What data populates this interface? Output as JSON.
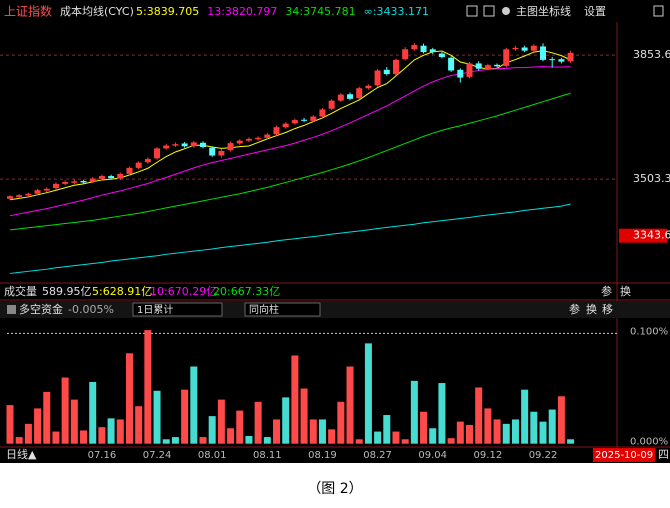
{
  "chart_data": {
    "type": "candlestick",
    "title": "上证指数",
    "indicator": "成本均线(CYC)",
    "toolbar": [
      "主图",
      "坐标线",
      "设置"
    ],
    "categories": [
      null,
      null,
      null,
      null,
      null,
      null,
      null,
      null,
      null,
      null,
      "07.16",
      null,
      null,
      null,
      null,
      null,
      "07.24",
      null,
      null,
      null,
      null,
      null,
      "08.01",
      null,
      null,
      null,
      null,
      null,
      "08.11",
      null,
      null,
      null,
      null,
      null,
      "08.19",
      null,
      null,
      null,
      null,
      null,
      "08.27",
      null,
      null,
      null,
      null,
      null,
      "09.04",
      null,
      null,
      null,
      null,
      null,
      "09.12",
      null,
      null,
      null,
      null,
      null,
      "09.22",
      null,
      null,
      null
    ],
    "open": [
      3448,
      3453,
      3457,
      3462,
      3471,
      3478,
      3490,
      3493,
      3498,
      3496,
      3504,
      3512,
      3505,
      3518,
      3535,
      3551,
      3562,
      3590,
      3598,
      3604,
      3596,
      3606,
      3592,
      3570,
      3585,
      3604,
      3612,
      3616,
      3620,
      3630,
      3650,
      3661,
      3671,
      3668,
      3680,
      3702,
      3725,
      3743,
      3732,
      3760,
      3768,
      3812,
      3800,
      3842,
      3870,
      3880,
      3870,
      3858,
      3846,
      3812,
      3792,
      3830,
      3814,
      3826,
      3823,
      3870,
      3875,
      3866,
      3878,
      3842,
      3842,
      3836
    ],
    "high": [
      3458,
      3461,
      3465,
      3476,
      3480,
      3494,
      3500,
      3502,
      3501,
      3509,
      3516,
      3516,
      3522,
      3539,
      3554,
      3565,
      3594,
      3603,
      3607,
      3608,
      3611,
      3610,
      3596,
      3588,
      3609,
      3616,
      3621,
      3624,
      3633,
      3654,
      3664,
      3674,
      3676,
      3684,
      3704,
      3729,
      3746,
      3748,
      3764,
      3771,
      3814,
      3820,
      3844,
      3876,
      3888,
      3886,
      3874,
      3862,
      3850,
      3816,
      3834,
      3836,
      3829,
      3830,
      3874,
      3880,
      3880,
      3884,
      3887,
      3848,
      3846,
      3866
    ],
    "low": [
      3444,
      3449,
      3453,
      3458,
      3467,
      3474,
      3486,
      3489,
      3490,
      3492,
      3500,
      3502,
      3501,
      3514,
      3531,
      3547,
      3558,
      3586,
      3594,
      3592,
      3592,
      3590,
      3566,
      3564,
      3581,
      3600,
      3608,
      3612,
      3616,
      3626,
      3646,
      3657,
      3664,
      3664,
      3676,
      3698,
      3721,
      3726,
      3728,
      3756,
      3764,
      3796,
      3796,
      3838,
      3866,
      3858,
      3856,
      3844,
      3806,
      3776,
      3788,
      3810,
      3810,
      3818,
      3819,
      3866,
      3862,
      3862,
      3836,
      3818,
      3830,
      3832
    ],
    "close": [
      3455,
      3458,
      3462,
      3472,
      3476,
      3490,
      3495,
      3497,
      3494,
      3505,
      3512,
      3506,
      3518,
      3535,
      3550,
      3560,
      3590,
      3598,
      3602,
      3596,
      3607,
      3594,
      3570,
      3583,
      3605,
      3612,
      3617,
      3620,
      3629,
      3650,
      3660,
      3670,
      3668,
      3680,
      3700,
      3725,
      3742,
      3730,
      3760,
      3767,
      3810,
      3800,
      3840,
      3870,
      3882,
      3862,
      3862,
      3848,
      3810,
      3790,
      3830,
      3815,
      3825,
      3822,
      3870,
      3874,
      3866,
      3880,
      3840,
      3840,
      3835,
      3860
    ],
    "up_color": "#ff3c3c",
    "down_color": "#54fcfc",
    "series": [
      {
        "name": "5:3839.705",
        "color": "#ffff00",
        "values": [
          3445,
          3449,
          3453,
          3459,
          3465,
          3472,
          3479,
          3486,
          3490,
          3496,
          3501,
          3503,
          3507,
          3515,
          3524,
          3534,
          3551,
          3567,
          3580,
          3589,
          3599,
          3599,
          3594,
          3590,
          3592,
          3595,
          3597,
          3607,
          3617,
          3626,
          3635,
          3646,
          3655,
          3666,
          3676,
          3689,
          3703,
          3715,
          3727,
          3745,
          3762,
          3773,
          3795,
          3817,
          3840,
          3853,
          3863,
          3865,
          3853,
          3834,
          3828,
          3819,
          3814,
          3816,
          3832,
          3841,
          3851,
          3862,
          3866,
          3860,
          3852,
          3839.705
        ]
      },
      {
        "name": "13:3820.797",
        "color": "#ff00ff",
        "values": [
          3400,
          3405,
          3410,
          3415,
          3420,
          3426,
          3432,
          3438,
          3444,
          3451,
          3458,
          3464,
          3470,
          3477,
          3484,
          3491,
          3500,
          3508,
          3517,
          3526,
          3535,
          3543,
          3550,
          3556,
          3562,
          3568,
          3574,
          3580,
          3586,
          3592,
          3598,
          3605,
          3613,
          3621,
          3630,
          3640,
          3651,
          3662,
          3674,
          3686,
          3698,
          3710,
          3724,
          3738,
          3752,
          3766,
          3778,
          3788,
          3796,
          3800,
          3806,
          3810,
          3813,
          3815,
          3816,
          3818,
          3818,
          3820,
          3821,
          3820,
          3820,
          3820.797
        ]
      },
      {
        "name": "34:3745.781",
        "color": "#00e000",
        "values": [
          3360,
          3363,
          3366,
          3369,
          3372,
          3375,
          3378,
          3381,
          3384,
          3387,
          3391,
          3395,
          3399,
          3403,
          3407,
          3412,
          3417,
          3422,
          3427,
          3432,
          3437,
          3442,
          3447,
          3452,
          3457,
          3462,
          3468,
          3474,
          3480,
          3487,
          3494,
          3501,
          3508,
          3515,
          3522,
          3530,
          3538,
          3546,
          3555,
          3564,
          3574,
          3584,
          3594,
          3604,
          3614,
          3624,
          3633,
          3641,
          3648,
          3654,
          3661,
          3668,
          3675,
          3682,
          3690,
          3698,
          3706,
          3714,
          3722,
          3730,
          3738,
          3745.781
        ]
      },
      {
        "name": "∞:3433.171",
        "color": "#00e0e0",
        "values": [
          3237,
          3240,
          3243,
          3246,
          3249,
          3253,
          3256,
          3259,
          3262,
          3265,
          3268,
          3272,
          3275,
          3278,
          3281,
          3284,
          3287,
          3291,
          3294,
          3297,
          3300,
          3303,
          3306,
          3310,
          3313,
          3316,
          3319,
          3322,
          3325,
          3329,
          3332,
          3335,
          3338,
          3341,
          3344,
          3348,
          3351,
          3354,
          3357,
          3360,
          3364,
          3367,
          3370,
          3373,
          3376,
          3380,
          3383,
          3386,
          3389,
          3392,
          3395,
          3399,
          3402,
          3405,
          3408,
          3411,
          3415,
          3418,
          3421,
          3424,
          3427,
          3433.171
        ]
      }
    ],
    "ylim": [
      3210,
      3947
    ],
    "yticks": [
      3853.6,
      3503.3
    ],
    "price_marker": 3343.6,
    "grid": true
  },
  "volume_bar": {
    "label": "成交量",
    "value_text": "589.95亿",
    "ma_texts": [
      "5:628.91亿",
      "10:670.29亿",
      "20:667.33亿"
    ],
    "tools": [
      "参",
      "换"
    ]
  },
  "flow_chart": {
    "type": "bar",
    "title": "多空资金",
    "current": "-0.005%",
    "dropdowns": [
      "1日累计",
      "同向柱"
    ],
    "tools": [
      "参",
      "换",
      "移"
    ],
    "values": [
      0.035,
      0.006,
      0.018,
      0.032,
      0.047,
      0.011,
      0.06,
      0.04,
      0.012,
      0.056,
      0.015,
      0.023,
      0.022,
      0.082,
      0.034,
      0.103,
      0.048,
      0.004,
      0.006,
      0.049,
      0.07,
      0.006,
      0.025,
      0.04,
      0.014,
      0.03,
      0.007,
      0.038,
      0.006,
      0.022,
      0.042,
      0.08,
      0.05,
      0.022,
      0.022,
      0.013,
      0.038,
      0.07,
      0.004,
      0.091,
      0.011,
      0.026,
      0.011,
      0.004,
      0.057,
      0.029,
      0.014,
      0.055,
      0.005,
      0.02,
      0.017,
      0.051,
      0.032,
      0.022,
      0.018,
      0.022,
      0.049,
      0.029,
      0.02,
      0.031,
      0.043,
      0.004
    ],
    "colors": [
      "#ff4a4a",
      "#ff4a4a",
      "#ff4a4a",
      "#ff4a4a",
      "#ff4a4a",
      "#ff4a4a",
      "#ff4a4a",
      "#ff4a4a",
      "#ff4a4a",
      "#46dcd2",
      "#ff4a4a",
      "#46dcd2",
      "#ff4a4a",
      "#ff4a4a",
      "#ff4a4a",
      "#ff4a4a",
      "#46dcd2",
      "#46dcd2",
      "#46dcd2",
      "#ff4a4a",
      "#46dcd2",
      "#ff4a4a",
      "#46dcd2",
      "#ff4a4a",
      "#ff4a4a",
      "#ff4a4a",
      "#46dcd2",
      "#ff4a4a",
      "#46dcd2",
      "#ff4a4a",
      "#46dcd2",
      "#ff4a4a",
      "#ff4a4a",
      "#ff4a4a",
      "#46dcd2",
      "#ff4a4a",
      "#ff4a4a",
      "#ff4a4a",
      "#ff4a4a",
      "#46dcd2",
      "#46dcd2",
      "#46dcd2",
      "#ff4a4a",
      "#ff4a4a",
      "#46dcd2",
      "#ff4a4a",
      "#46dcd2",
      "#46dcd2",
      "#ff4a4a",
      "#ff4a4a",
      "#ff4a4a",
      "#ff4a4a",
      "#ff4a4a",
      "#ff4a4a",
      "#46dcd2",
      "#46dcd2",
      "#46dcd2",
      "#46dcd2",
      "#46dcd2",
      "#46dcd2",
      "#ff4a4a",
      "#46dcd2"
    ],
    "ylim": [
      -0.003,
      0.114
    ],
    "yticks": [
      {
        "value": 0.1,
        "label": "0.100%"
      },
      {
        "value": 0,
        "label": "0.000%"
      }
    ],
    "grid": true
  },
  "footer": {
    "period": "日线▲",
    "cursor_date": "2025-10-09",
    "weekday": "四"
  },
  "caption": "（图 2）"
}
